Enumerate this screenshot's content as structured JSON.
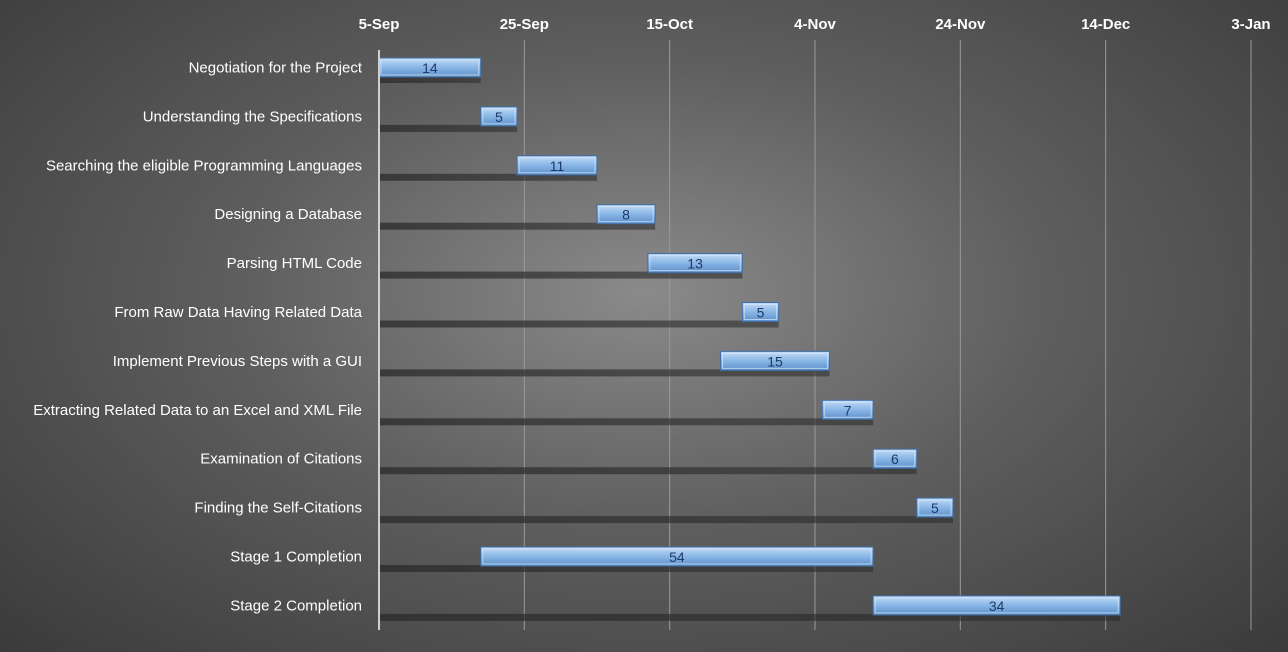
{
  "chart_data": {
    "type": "bar",
    "orientation": "horizontal",
    "subtype": "gantt",
    "x_axis_position": "top",
    "grid": true,
    "legend": "none",
    "bar_color": "#7fb0e3",
    "x_ticks": [
      "5-Sep",
      "25-Sep",
      "15-Oct",
      "4-Nov",
      "24-Nov",
      "14-Dec",
      "3-Jan"
    ],
    "categories": [
      "Negotiation for the Project",
      "Understanding the Specifications",
      "Searching the eligible Programming Languages",
      "Designing a Database",
      "Parsing HTML Code",
      "From Raw Data Having Related Data",
      "Implement Previous Steps with a GUI",
      "Extracting Related Data to an Excel and XML File",
      "Examination of Citations",
      "Finding the Self-Citations",
      "Stage 1 Completion",
      "Stage 2 Completion"
    ],
    "start_day_offsets": [
      0,
      14,
      19,
      30,
      37,
      50,
      47,
      61,
      68,
      74,
      14,
      68
    ],
    "durations": [
      14,
      5,
      11,
      8,
      13,
      5,
      15,
      7,
      6,
      5,
      54,
      34
    ],
    "xlim_days": [
      0,
      120
    ]
  }
}
